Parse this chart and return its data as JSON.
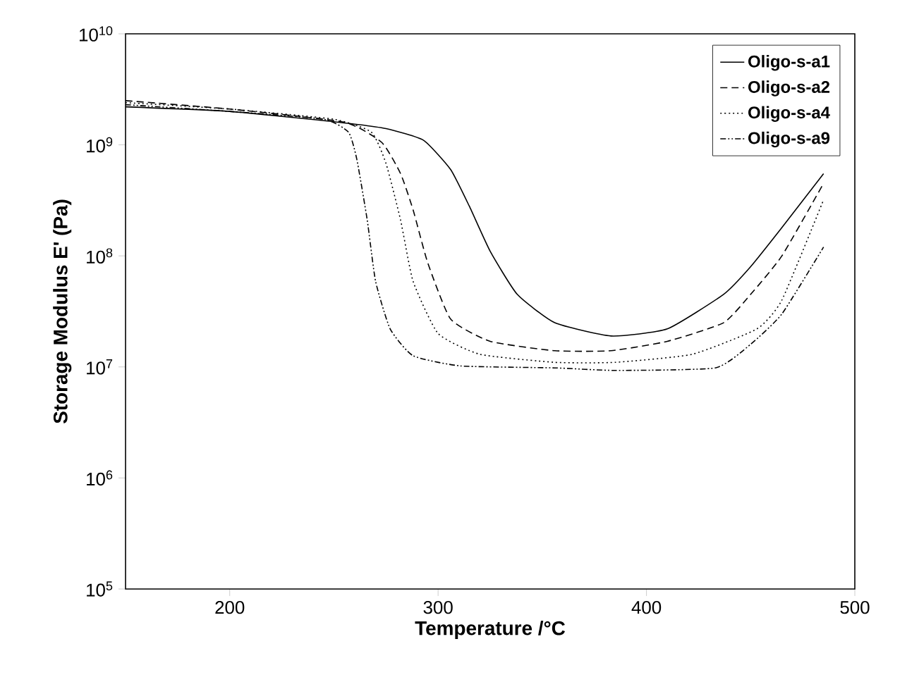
{
  "chart_data": {
    "type": "line",
    "xlabel": "Temperature /°C",
    "ylabel": "Storage Modulus E' (Pa)",
    "log": "y",
    "xlim": [
      150,
      500
    ],
    "xticks": [
      200,
      300,
      400,
      500
    ],
    "ylim": [
      100000.0,
      10000000000.0
    ],
    "yticks": [
      {
        "value": 100000.0,
        "label": "10$^{5}$"
      },
      {
        "value": 1000000.0,
        "label": "10$^{6}$"
      },
      {
        "value": 10000000.0,
        "label": "10$^{7}$"
      },
      {
        "value": 100000000.0,
        "label": "10$^{8}$"
      },
      {
        "value": 1000000000.0,
        "label": "10$^{9}$"
      },
      {
        "value": 10000000000.0,
        "label": "10$^{10}$"
      }
    ],
    "legend": "top right",
    "grid": false,
    "marker": "none",
    "series": [
      {
        "name": "Oligo-s-a1",
        "color": "#000000",
        "line_style": "solid",
        "x": [
          150,
          200,
          252,
          275,
          293,
          306,
          315,
          325,
          338,
          356,
          383,
          410,
          437,
          450,
          465,
          485
        ],
        "values": [
          2200000000.0,
          2000000000.0,
          1600000000.0,
          1400000000.0,
          1100000000.0,
          600000000.0,
          280000000.0,
          110000000.0,
          45000000.0,
          25000000.0,
          19000000.0,
          22000000.0,
          45000000.0,
          80000000.0,
          180000000.0,
          550000000.0
        ]
      },
      {
        "name": "Oligo-s-a2",
        "color": "#000000",
        "line_style": "dashed",
        "x": [
          150,
          200,
          255,
          273,
          282,
          288,
          295,
          306,
          325,
          356,
          383,
          410,
          437,
          450,
          465,
          485
        ],
        "values": [
          2500000000.0,
          2100000000.0,
          1600000000.0,
          1050000000.0,
          550000000.0,
          260000000.0,
          87000000.0,
          27000000.0,
          17000000.0,
          14000000.0,
          14000000.0,
          17000000.0,
          25000000.0,
          45000000.0,
          100000000.0,
          450000000.0
        ]
      },
      {
        "name": "Oligo-s-a4",
        "color": "#000000",
        "line_style": "dotted",
        "x": [
          150,
          200,
          250,
          268,
          275,
          282,
          288,
          300,
          320,
          356,
          385,
          422,
          453,
          465,
          485
        ],
        "values": [
          2400000000.0,
          2100000000.0,
          1700000000.0,
          1300000000.0,
          680000000.0,
          210000000.0,
          59000000.0,
          20000000.0,
          13000000.0,
          11000000.0,
          11000000.0,
          13000000.0,
          22000000.0,
          40000000.0,
          320000000.0
        ]
      },
      {
        "name": "Oligo-s-a9",
        "color": "#000000",
        "line_style": "dashdot",
        "x": [
          150,
          200,
          245,
          257,
          261,
          266,
          270,
          277,
          288,
          311,
          356,
          385,
          433,
          450,
          465,
          485
        ],
        "values": [
          2300000000.0,
          2000000000.0,
          1700000000.0,
          1300000000.0,
          740000000.0,
          210000000.0,
          59000000.0,
          22000000.0,
          12600000.0,
          10200000.0,
          9800000.0,
          9300000.0,
          9800000.0,
          16000000.0,
          30000000.0,
          120000000.0
        ]
      }
    ]
  }
}
